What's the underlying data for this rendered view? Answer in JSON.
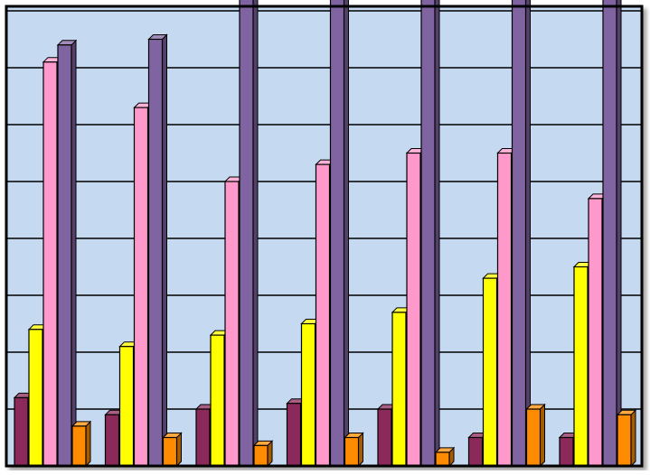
{
  "chart_data": {
    "type": "bar",
    "style": "3d-clustered-columns",
    "grid": true,
    "legend": "none",
    "ylim": [
      0,
      60
    ],
    "categories": [
      "",
      "",
      "",
      "",
      "",
      "",
      ""
    ],
    "series": [
      {
        "color": "#8b2a5a",
        "values": [
          6.0,
          4.5,
          5.0,
          5.5,
          5.0,
          2.5,
          2.5
        ]
      },
      {
        "color": "#ffff00",
        "values": [
          12.0,
          10.5,
          11.5,
          12.5,
          13.5,
          16.5,
          17.5
        ]
      },
      {
        "color": "#ff99cc",
        "values": [
          35.5,
          31.5,
          25.0,
          26.5,
          27.5,
          27.5,
          23.5
        ]
      },
      {
        "color": "#8064a2",
        "values": [
          37.0,
          37.5,
          41.5,
          46.5,
          45.0,
          44.0,
          43.0
        ]
      },
      {
        "color": "#ff8c00",
        "values": [
          3.5,
          2.5,
          1.8,
          2.5,
          1.2,
          5.0,
          4.5
        ]
      }
    ],
    "colors": {
      "plot_background": "#c5d9f1",
      "gridline": "#000000",
      "frame": "#000000"
    }
  }
}
